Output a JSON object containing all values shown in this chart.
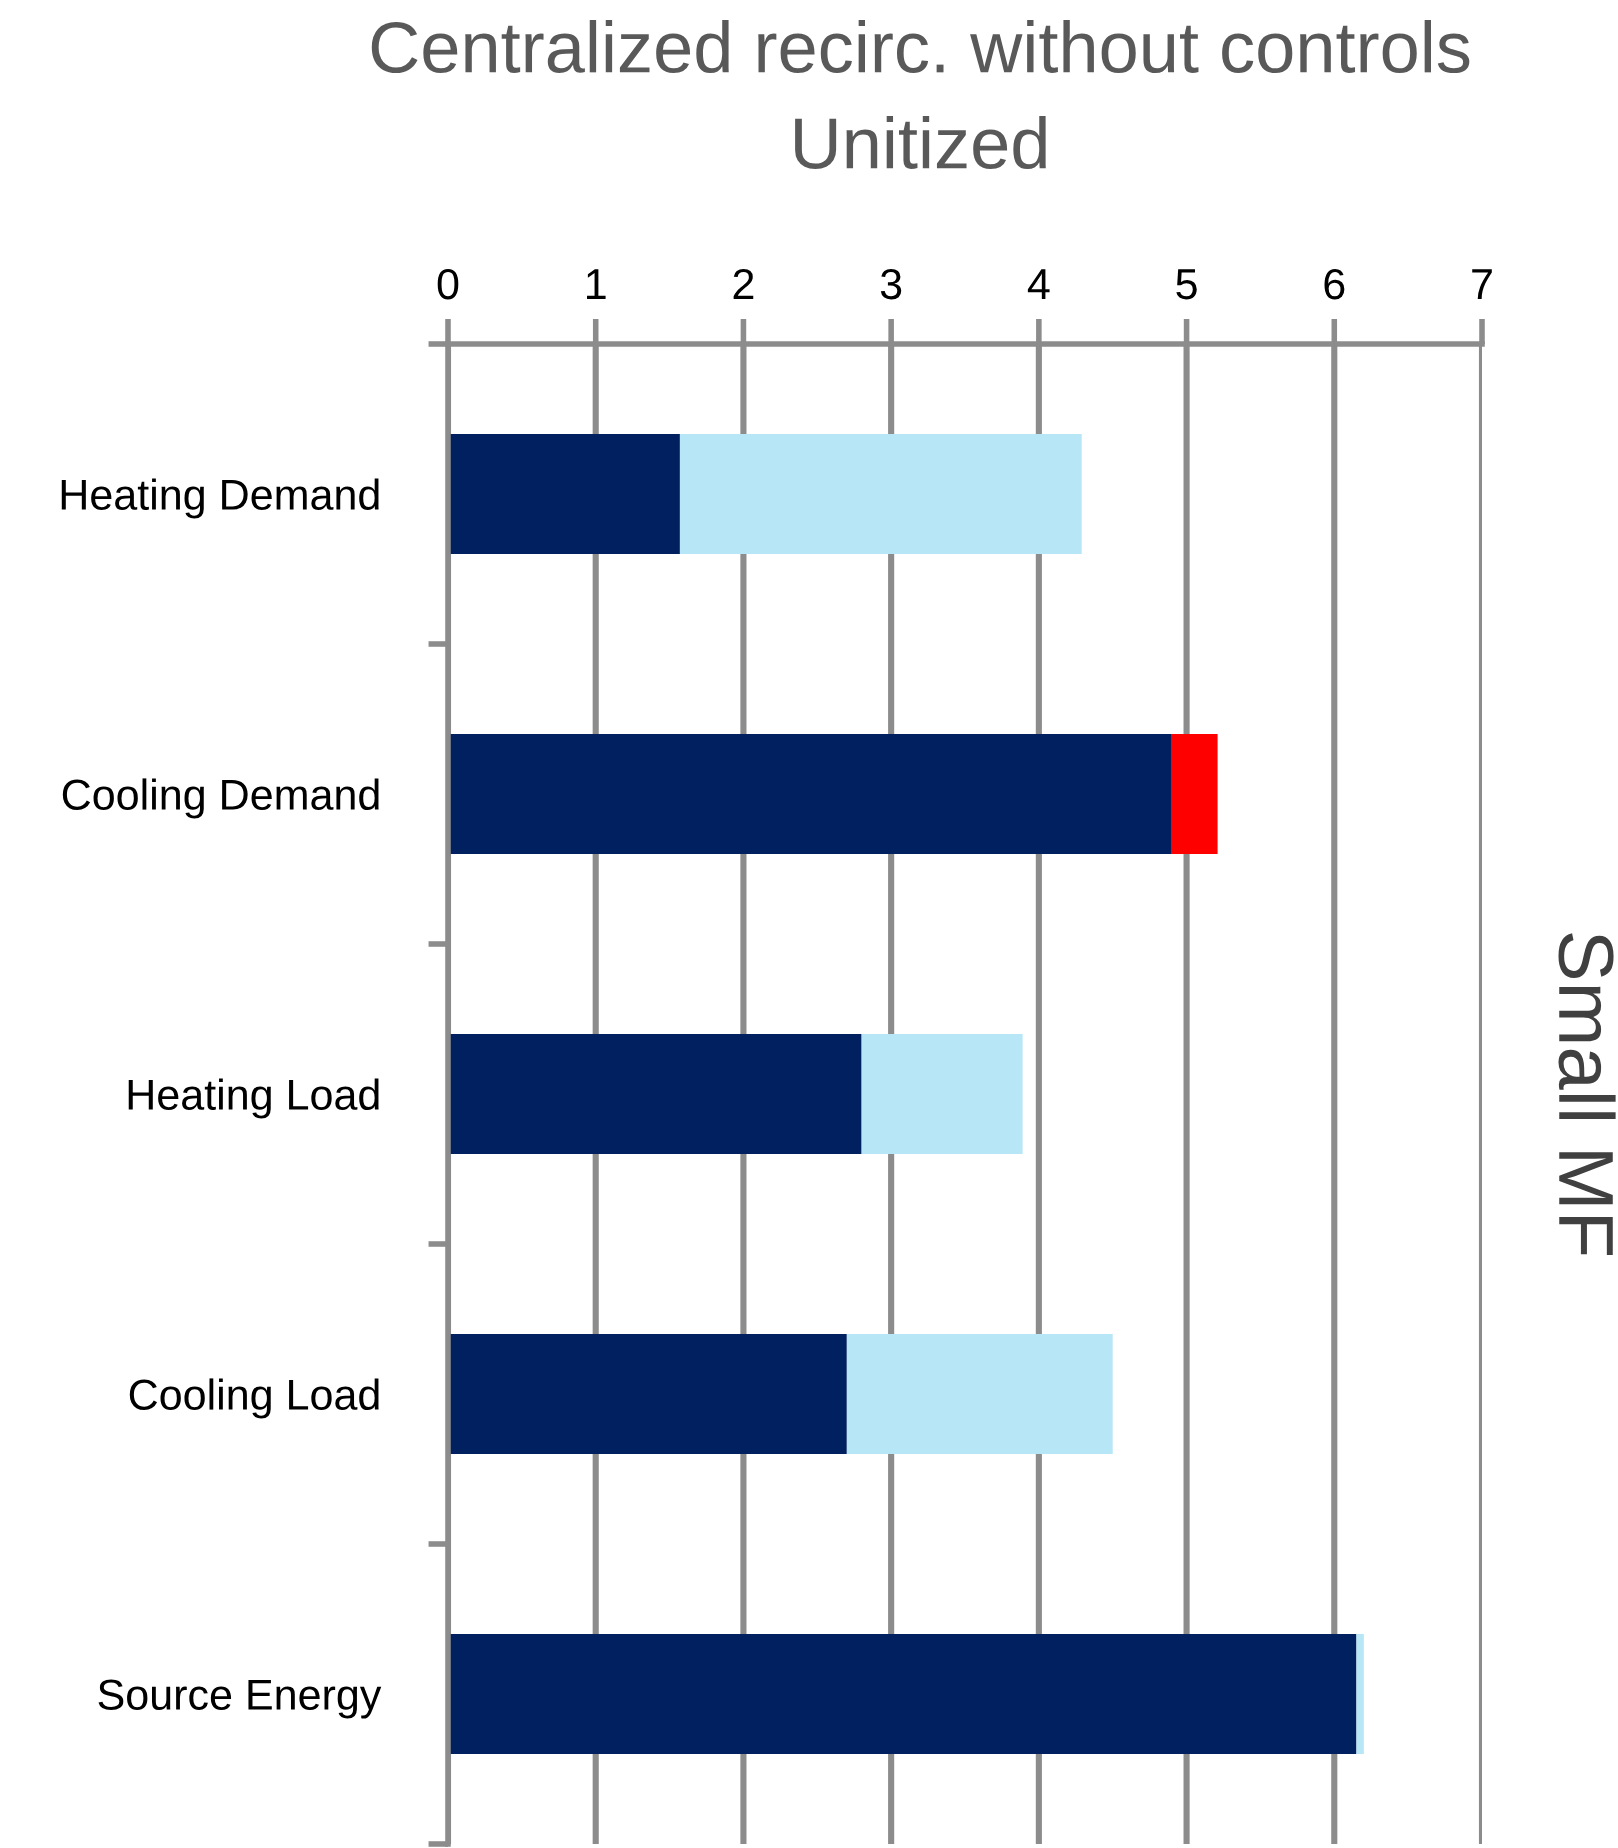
{
  "chart_data": {
    "type": "bar",
    "orientation": "horizontal",
    "stacked": true,
    "title": "Centralized recirc. without controls",
    "subtitle": "Unitized",
    "ylabel": "Small MF",
    "categories": [
      "Heating Demand",
      "Cooling Demand",
      "Heating Load",
      "Cooling Load",
      "Source Energy"
    ],
    "series": [
      {
        "color": "#002060",
        "values": [
          1.57,
          4.9,
          2.8,
          2.7,
          6.15
        ]
      },
      {
        "colors": [
          "#b7e6f7",
          "#ff0000",
          "#b7e6f7",
          "#b7e6f7",
          "#b7e6f7"
        ],
        "values": [
          2.72,
          0.31,
          1.09,
          1.8,
          0.05
        ]
      }
    ],
    "xlim": [
      0,
      7
    ],
    "xticks": [
      0,
      1,
      2,
      3,
      4,
      5,
      6,
      7
    ],
    "grid": "x"
  }
}
